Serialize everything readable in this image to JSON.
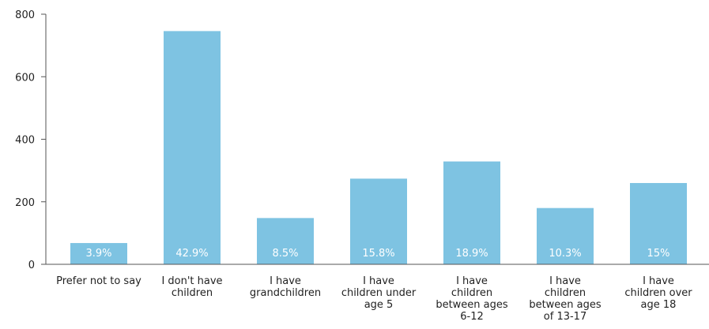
{
  "chart_data": {
    "type": "bar",
    "categories": [
      [
        "Prefer not to say"
      ],
      [
        "I don't have",
        "children"
      ],
      [
        "I have",
        "grandchildren"
      ],
      [
        "I have",
        "children under",
        "age 5"
      ],
      [
        "I have",
        "children",
        "between ages",
        "6-12"
      ],
      [
        "I have",
        "children",
        "between ages",
        "of 13-17"
      ],
      [
        "I have",
        "children over",
        "age 18"
      ]
    ],
    "values": [
      68,
      746,
      148,
      274,
      329,
      180,
      260
    ],
    "data_labels": [
      "3.9%",
      "42.9%",
      "8.5%",
      "15.8%",
      "18.9%",
      "10.3%",
      "15%"
    ],
    "ylim": [
      0,
      800
    ],
    "yticks": [
      0,
      200,
      400,
      600,
      800
    ],
    "title": "",
    "xlabel": "",
    "ylabel": "",
    "grid": false,
    "legend": "none",
    "bar_color": "#7ec3e2",
    "axis_color": "#555555",
    "text_color": "#222222",
    "label_color": "#ffffff"
  }
}
